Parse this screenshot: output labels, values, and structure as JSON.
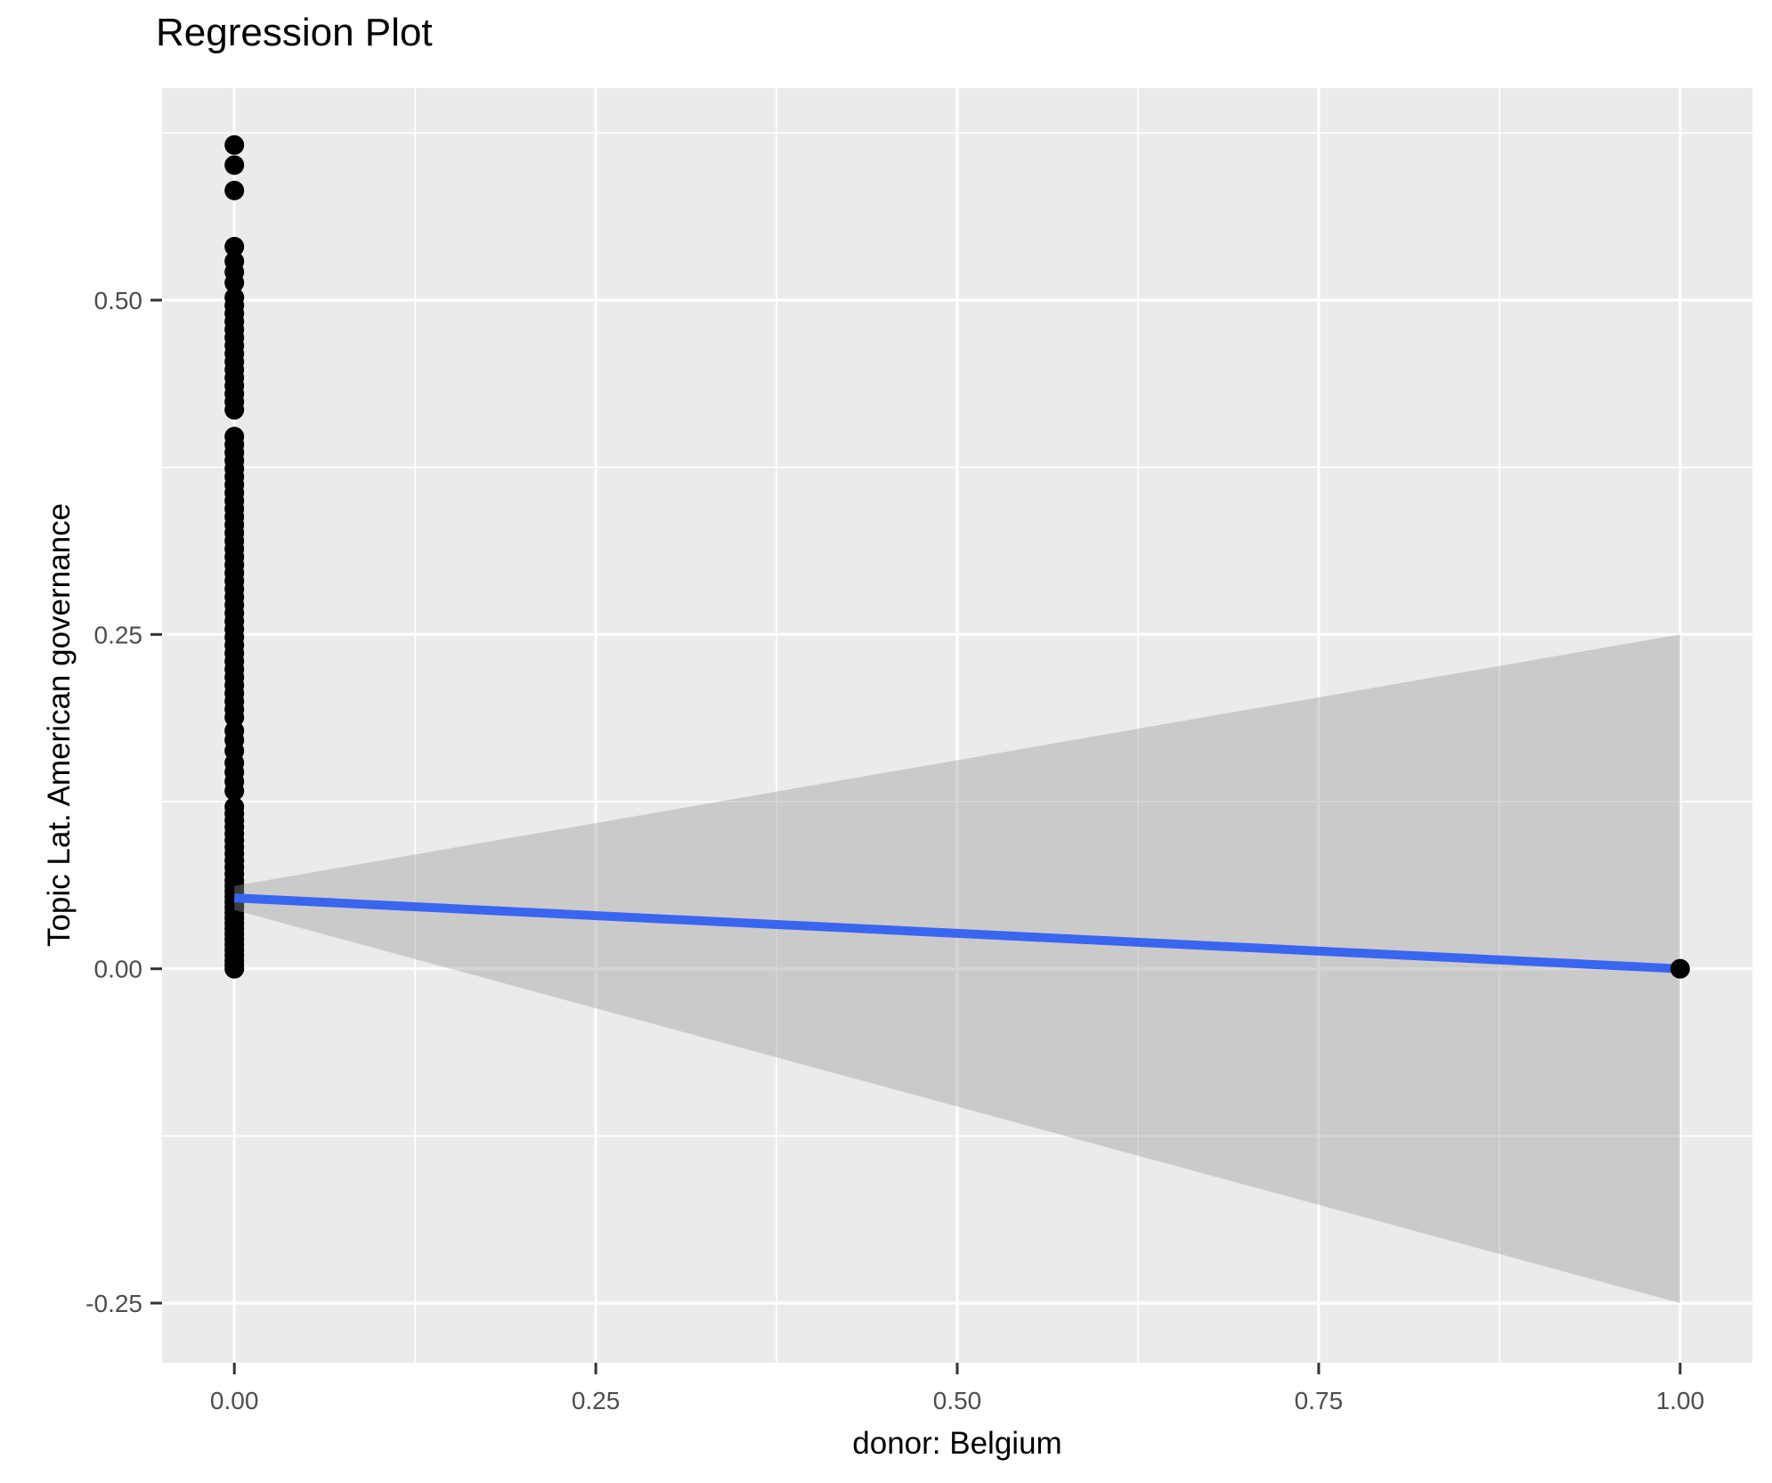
{
  "chart_data": {
    "type": "scatter",
    "title": "Regression Plot",
    "xlabel": "donor: Belgium",
    "ylabel": "Topic Lat. American governance",
    "legend": "none",
    "grid": "on",
    "xlim": [
      -0.05,
      1.05
    ],
    "ylim": [
      -0.2946,
      0.6585
    ],
    "x_tick_values": [
      0,
      0.25,
      0.5,
      0.75,
      1
    ],
    "x_ticks": [
      "0.00",
      "0.25",
      "0.50",
      "0.75",
      "1.00"
    ],
    "y_tick_values": [
      0.5,
      0.25,
      0,
      -0.25
    ],
    "y_ticks": [
      "0.50",
      "0.25",
      "0.00",
      "-0.25"
    ],
    "x_minor_ticks": [
      0.125,
      0.375,
      0.625,
      0.875
    ],
    "y_minor_ticks": [
      0.625,
      0.375,
      0.125,
      -0.125
    ],
    "points_x0": [
      0.616,
      0.601,
      0.582,
      0.54,
      0.529,
      0.521,
      0.513,
      0.502,
      0.496,
      0.49,
      0.484,
      0.478,
      0.472,
      0.466,
      0.46,
      0.454,
      0.448,
      0.442,
      0.436,
      0.43,
      0.424,
      0.418,
      0.398,
      0.392,
      0.386,
      0.38,
      0.374,
      0.368,
      0.362,
      0.356,
      0.35,
      0.344,
      0.338,
      0.332,
      0.326,
      0.32,
      0.314,
      0.308,
      0.302,
      0.296,
      0.29,
      0.284,
      0.278,
      0.272,
      0.266,
      0.26,
      0.254,
      0.248,
      0.242,
      0.236,
      0.23,
      0.224,
      0.218,
      0.212,
      0.206,
      0.2,
      0.194,
      0.188,
      0.178,
      0.171,
      0.163,
      0.154,
      0.147,
      0.14,
      0.133,
      0.121,
      0.116,
      0.111,
      0.106,
      0.101,
      0.096,
      0.091,
      0.086,
      0.081,
      0.076,
      0.071,
      0.066,
      0.062,
      0.058,
      0.054,
      0.05,
      0.046,
      0.042,
      0.038,
      0.034,
      0.03,
      0.026,
      0.022,
      0.018,
      0.014,
      0.01,
      0.006,
      0.003,
      0.0
    ],
    "outlier_point": {
      "x": 1,
      "y": 0
    },
    "regression_line": {
      "x": [
        0,
        1
      ],
      "y": [
        0.053,
        0.0
      ]
    },
    "confidence_band": {
      "x": [
        0,
        1
      ],
      "upper": [
        0.062,
        0.25
      ],
      "lower": [
        0.044,
        -0.25
      ]
    },
    "colors": {
      "background": "#FFFFFF",
      "panel": "#EBEBEB",
      "grid": "#FFFFFF",
      "point": "#000000",
      "line": "#3A65F1",
      "band": "rgba(153,153,153,0.4)",
      "tick_text": "#4D4D4D",
      "tick_mark": "#333333",
      "text": "#000000"
    }
  }
}
